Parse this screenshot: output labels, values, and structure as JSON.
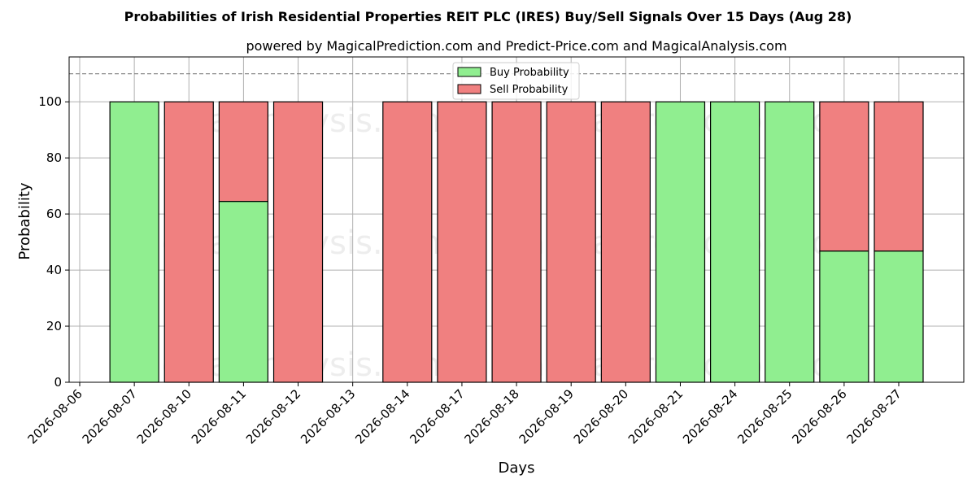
{
  "chart_data": {
    "type": "bar",
    "stacked": true,
    "title": "Probabilities of Irish Residential Properties REIT PLC (IRES) Buy/Sell Signals Over 15 Days (Aug 28)",
    "subtitle": "powered by MagicalPrediction.com and Predict-Price.com and MagicalAnalysis.com",
    "xlabel": "Days",
    "ylabel": "Probability",
    "ylim": [
      0,
      116
    ],
    "yticks": [
      0,
      20,
      40,
      60,
      80,
      100
    ],
    "reference_line": 110,
    "grid": true,
    "legend_position": "top-center",
    "categories": [
      "2026-08-06",
      "2026-08-07",
      "2026-08-10",
      "2026-08-11",
      "2026-08-12",
      "2026-08-13",
      "2026-08-14",
      "2026-08-17",
      "2026-08-18",
      "2026-08-19",
      "2026-08-20",
      "2026-08-21",
      "2026-08-24",
      "2026-08-25",
      "2026-08-26",
      "2026-08-27"
    ],
    "series": [
      {
        "name": "Buy Probability",
        "color": "#90ee90",
        "values": [
          null,
          100,
          0,
          64.5,
          0,
          null,
          0,
          0,
          0,
          0,
          0,
          100,
          100,
          100,
          46.8,
          46.8
        ]
      },
      {
        "name": "Sell Probability",
        "color": "#f08080",
        "values": [
          null,
          0,
          100,
          35.5,
          100,
          null,
          100,
          100,
          100,
          100,
          100,
          0,
          0,
          0,
          53.2,
          53.2
        ]
      }
    ],
    "watermarks": [
      "MagicalAnalysis.com",
      "MagicalPrediction.com"
    ]
  }
}
